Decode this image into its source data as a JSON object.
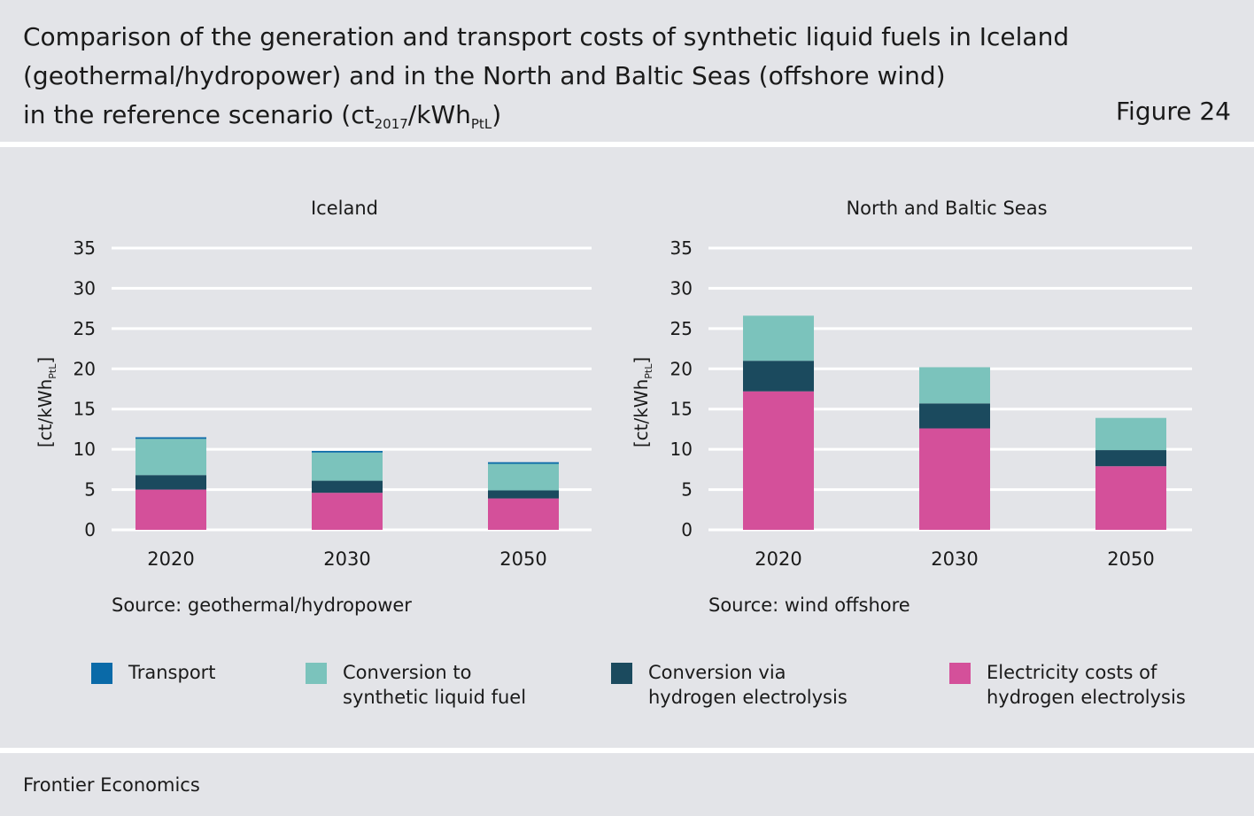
{
  "title": {
    "line1": "Comparison of the generation and transport costs of synthetic liquid fuels in Iceland",
    "line2": "(geothermal/hydropower) and in the North and Baltic Seas (offshore wind)",
    "line3_pre": "in the reference scenario (ct",
    "line3_sub1": "2017",
    "line3_mid": "/kWh",
    "line3_sub2": "PtL",
    "line3_post": ")"
  },
  "figure_label": "Figure 24",
  "footer": {
    "text": "Frontier Economics"
  },
  "legend": [
    {
      "label_line1": "Transport",
      "label_line2": "",
      "color": "#0a6aa8"
    },
    {
      "label_line1": "Conversion to",
      "label_line2": "synthetic liquid fuel",
      "color": "#7bc3bc"
    },
    {
      "label_line1": "Conversion via",
      "label_line2": "hydrogen electrolysis",
      "color": "#1b4a5e"
    },
    {
      "label_line1": "Electricity costs of",
      "label_line2": "hydrogen electrolysis",
      "color": "#d4509a"
    }
  ],
  "chart_data": [
    {
      "type": "bar",
      "stacked": true,
      "title": "Iceland",
      "ylabel": "[ct/kWh",
      "ylabel_sub": "PtL",
      "ylabel_post": "]",
      "ylim": [
        0,
        35
      ],
      "yticks": [
        0,
        5,
        10,
        15,
        20,
        25,
        30,
        35
      ],
      "grid": true,
      "categories": [
        "2020",
        "2030",
        "2050"
      ],
      "source": "Source: geothermal/hydropower",
      "series": [
        {
          "name": "Electricity costs of hydrogen electrolysis",
          "color": "#d4509a",
          "values": [
            5.0,
            4.6,
            3.9
          ]
        },
        {
          "name": "Conversion via hydrogen electrolysis",
          "color": "#1b4a5e",
          "values": [
            1.8,
            1.5,
            1.0
          ]
        },
        {
          "name": "Conversion to synthetic liquid fuel",
          "color": "#7bc3bc",
          "values": [
            4.5,
            3.5,
            3.3
          ]
        },
        {
          "name": "Transport",
          "color": "#0a6aa8",
          "values": [
            0.2,
            0.2,
            0.2
          ]
        }
      ]
    },
    {
      "type": "bar",
      "stacked": true,
      "title": "North and Baltic Seas",
      "ylabel": "[ct/kWh",
      "ylabel_sub": "PtL",
      "ylabel_post": "]",
      "ylim": [
        0,
        35
      ],
      "yticks": [
        0,
        5,
        10,
        15,
        20,
        25,
        30,
        35
      ],
      "grid": true,
      "categories": [
        "2020",
        "2030",
        "2050"
      ],
      "source": "Source: wind offshore",
      "series": [
        {
          "name": "Electricity costs of hydrogen electrolysis",
          "color": "#d4509a",
          "values": [
            17.2,
            12.6,
            7.9
          ]
        },
        {
          "name": "Conversion via hydrogen electrolysis",
          "color": "#1b4a5e",
          "values": [
            3.8,
            3.1,
            2.0
          ]
        },
        {
          "name": "Conversion to synthetic liquid fuel",
          "color": "#7bc3bc",
          "values": [
            5.6,
            4.5,
            4.0
          ]
        },
        {
          "name": "Transport",
          "color": "#0a6aa8",
          "values": [
            0,
            0,
            0
          ]
        }
      ]
    }
  ]
}
